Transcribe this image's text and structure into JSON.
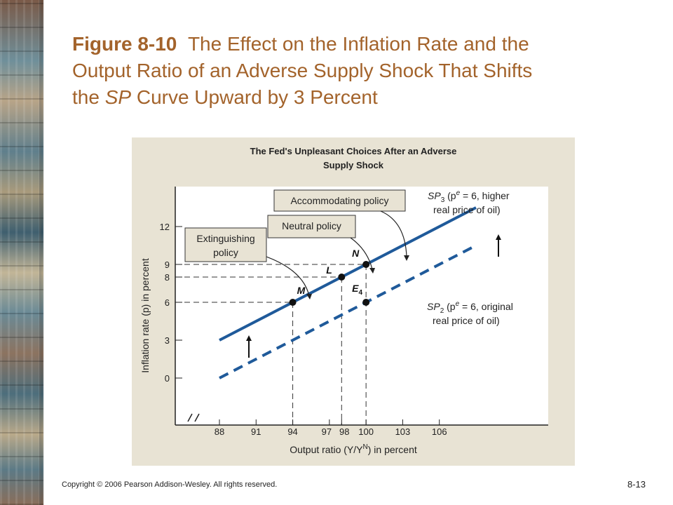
{
  "slide": {
    "title_number": "Figure 8-10",
    "title_line1_rest": "The Effect on the Inflation Rate and the",
    "title_line2": "Output Ratio of an Adverse Supply Shock That Shifts",
    "title_line3_pre": "the ",
    "title_line3_italic": "SP",
    "title_line3_post": " Curve Upward by 3 Percent",
    "footer": "Copyright © 2006 Pearson Addison-Wesley. All rights reserved.",
    "page_number": "8-13"
  },
  "colors": {
    "title": "#a3632b",
    "panel": "#e8e3d4",
    "plot": "#ffffff",
    "curve": "#1f5a9a",
    "box_fill": "#e8e3d4"
  },
  "chart_data": {
    "type": "line",
    "title_line1": "The Fed's Unpleasant Choices After an Adverse",
    "title_line2": "Supply Shock",
    "xlabel": "Output ratio (Y/Y",
    "xlabel_sup": "N",
    "xlabel_end": ") in percent",
    "ylabel": "Inflation rate (p) in percent",
    "x_ticks": [
      "88",
      "91",
      "94",
      "97",
      "98",
      "100",
      "103",
      "106"
    ],
    "x_tick_values": [
      88,
      91,
      94,
      97,
      98,
      100,
      103,
      106
    ],
    "y_ticks": [
      "0",
      "3",
      "6",
      "8",
      "9",
      "12"
    ],
    "y_tick_values": [
      0,
      3,
      6,
      8,
      9,
      12
    ],
    "xlim": [
      88,
      109
    ],
    "ylim": [
      0,
      14.5
    ],
    "grid": false,
    "series": [
      {
        "name": "SP3 (pe = 6, higher real price of oil)",
        "style": "solid",
        "x": [
          88,
          109
        ],
        "y": [
          3,
          13.5
        ]
      },
      {
        "name": "SP2 (pe = 6, original real price of oil)",
        "style": "dashed",
        "x": [
          88,
          109
        ],
        "y": [
          0,
          10.5
        ]
      }
    ],
    "curve_labels": {
      "sp3_line1_sp": "SP",
      "sp3_line1_sub": "3",
      "sp3_line1_rest": " (p",
      "sp3_line1_sup": "e",
      "sp3_line1_end": " = 6, higher",
      "sp3_line2": "real price of oil)",
      "sp2_line1_sp": "SP",
      "sp2_line1_sub": "2",
      "sp2_line1_rest": " (p",
      "sp2_line1_sup": "e",
      "sp2_line1_end": " = 6, original",
      "sp2_line2": "real price of oil)"
    },
    "points": [
      {
        "label": "M",
        "x": 94,
        "y": 6
      },
      {
        "label": "L",
        "x": 98,
        "y": 8
      },
      {
        "label": "N",
        "x": 100,
        "y": 9
      },
      {
        "label": "E",
        "sub": "4",
        "x": 100,
        "y": 6
      }
    ],
    "callouts": {
      "accommodating": "Accommodating policy",
      "neutral": "Neutral policy",
      "extinguishing_line1": "Extinguishing",
      "extinguishing_line2": "policy"
    }
  }
}
